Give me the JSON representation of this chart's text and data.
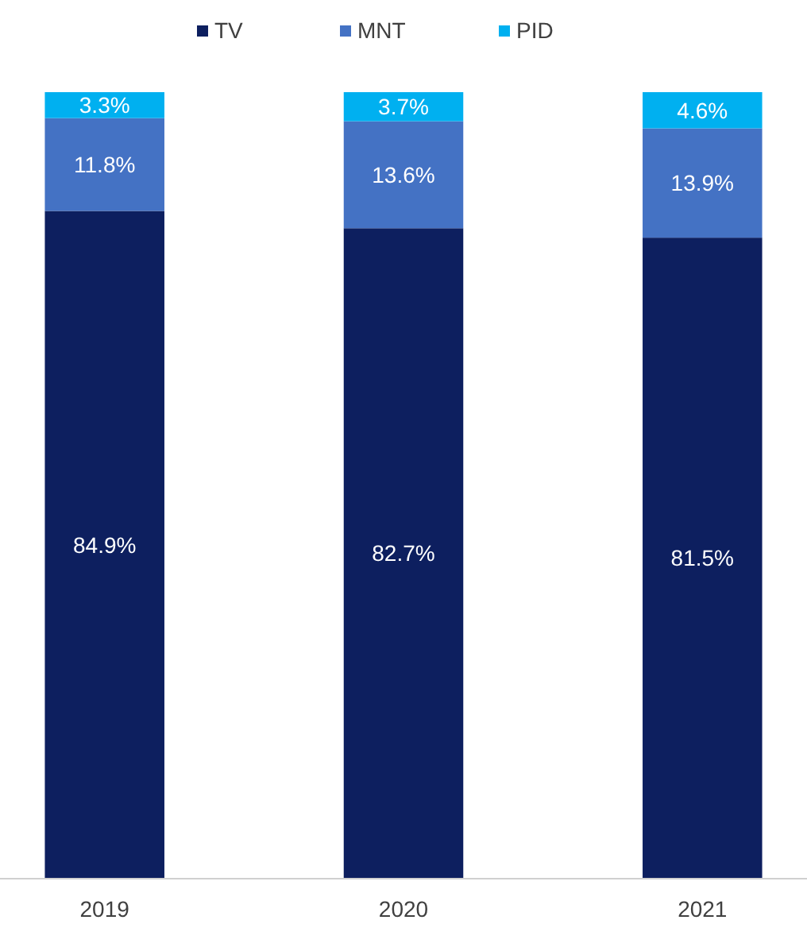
{
  "chart_data": {
    "type": "bar",
    "stacked": true,
    "categories": [
      "2019",
      "2020",
      "2021"
    ],
    "series": [
      {
        "name": "TV",
        "color": "#0d1f5f",
        "values": [
          84.9,
          82.7,
          81.5
        ],
        "value_labels": [
          "84.9%",
          "82.7%",
          "81.5%"
        ]
      },
      {
        "name": "MNT",
        "color": "#4472c4",
        "values": [
          11.8,
          13.6,
          13.9
        ],
        "value_labels": [
          "11.8%",
          "13.6%",
          "13.9%"
        ]
      },
      {
        "name": "PID",
        "color": "#00b0f0",
        "values": [
          3.3,
          3.7,
          4.6
        ],
        "value_labels": [
          "3.3%",
          "3.7%",
          "4.6%"
        ]
      }
    ],
    "tick_labels": "x",
    "legend": "top"
  }
}
